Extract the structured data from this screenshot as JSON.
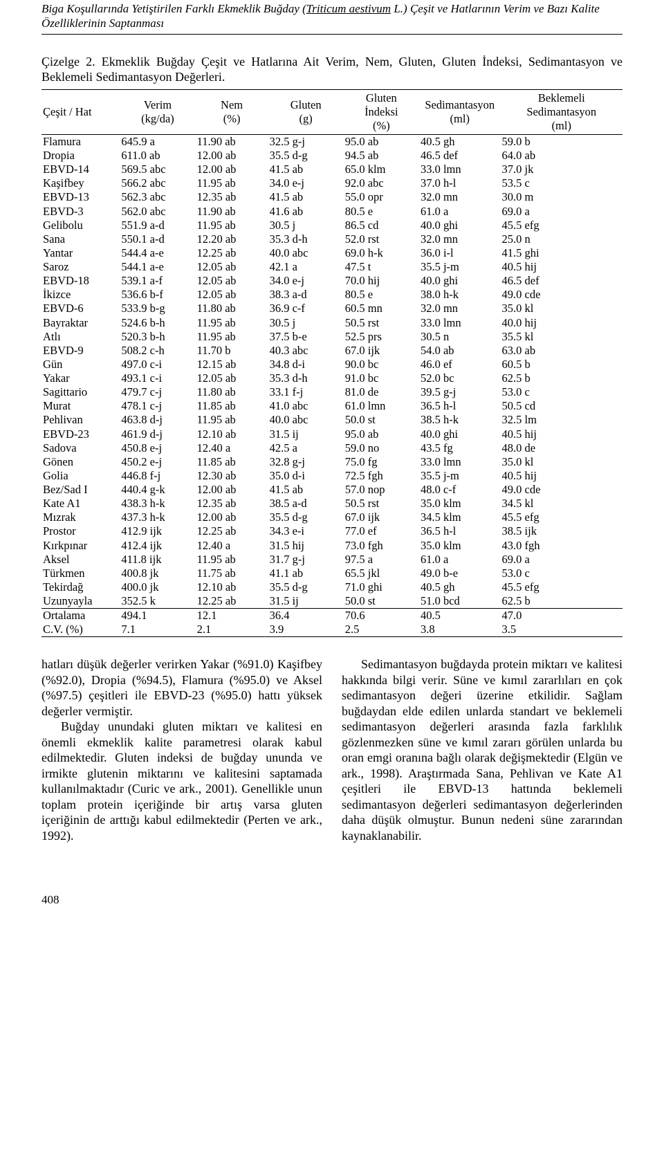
{
  "running_head_pre": "Biga Koşullarında Yetiştirilen Farklı Ekmeklik Buğday (",
  "running_head_ital": "Triticum aestivum",
  "running_head_post": " L.) Çeşit ve Hatlarının Verim ve Bazı Kalite Özelliklerinin Saptanması",
  "caption_no": "Çizelge 2.",
  "caption_text": " Ekmeklik Buğday Çeşit ve Hatlarına Ait Verim, Nem, Gluten, Gluten İndeksi, Sedimantasyon ve Beklemeli Sedimantasyon Değerleri.",
  "headers": {
    "name": "Çeşit / Hat",
    "verim": "Verim\n(kg/da)",
    "nem": "Nem\n(%)",
    "gluten": "Gluten\n(g)",
    "gindex": "Gluten\nİndeksi\n(%)",
    "sed": "Sedimantasyon\n(ml)",
    "bsed": "Beklemeli\nSedimantasyon\n(ml)"
  },
  "rows": [
    [
      "Flamura",
      "645.9 a",
      "11.90 ab",
      "32.5 g-j",
      "95.0 ab",
      "40.5 gh",
      "59.0 b"
    ],
    [
      "Dropia",
      "611.0 ab",
      "12.00 ab",
      "35.5 d-g",
      "94.5 ab",
      "46.5 def",
      "64.0 ab"
    ],
    [
      "EBVD-14",
      "569.5 abc",
      "12.00 ab",
      "41.5 ab",
      "65.0 klm",
      "33.0 lmn",
      "37.0 jk"
    ],
    [
      "Kaşifbey",
      "566.2 abc",
      "11.95 ab",
      "34.0 e-j",
      "92.0 abc",
      "37.0 h-l",
      "53.5 c"
    ],
    [
      "EBVD-13",
      "562.3 abc",
      "12.35 ab",
      "41.5 ab",
      "55.0 opr",
      "32.0 mn",
      "30.0 m"
    ],
    [
      "EBVD-3",
      "562.0 abc",
      "11.90 ab",
      "41.6 ab",
      "80.5 e",
      "61.0 a",
      "69.0 a"
    ],
    [
      "Gelibolu",
      "551.9 a-d",
      "11.95 ab",
      "30.5 j",
      "86.5 cd",
      "40.0 ghi",
      "45.5 efg"
    ],
    [
      "Sana",
      "550.1 a-d",
      "12.20 ab",
      "35.3 d-h",
      "52.0 rst",
      "32.0 mn",
      "25.0 n"
    ],
    [
      "Yantar",
      "544.4 a-e",
      "12.25 ab",
      "40.0 abc",
      "69.0 h-k",
      "36.0 i-l",
      "41.5 ghi"
    ],
    [
      "Saroz",
      "544.1 a-e",
      "12.05 ab",
      "42.1 a",
      "47.5 t",
      "35.5 j-m",
      "40.5 hij"
    ],
    [
      "EBVD-18",
      "539.1 a-f",
      "12.05 ab",
      "34.0 e-j",
      "70.0 hij",
      "40.0 ghi",
      "46.5 def"
    ],
    [
      "İkizce",
      "536.6 b-f",
      "12.05 ab",
      "38.3 a-d",
      "80.5 e",
      "38.0 h-k",
      "49.0 cde"
    ],
    [
      "EBVD-6",
      "533.9 b-g",
      "11.80 ab",
      "36.9 c-f",
      "60.5 mn",
      "32.0 mn",
      "35.0 kl"
    ],
    [
      "Bayraktar",
      "524.6 b-h",
      "11.95 ab",
      "30.5 j",
      "50.5 rst",
      "33.0 lmn",
      "40.0 hij"
    ],
    [
      "Atlı",
      "520.3 b-h",
      "11.95 ab",
      "37.5 b-e",
      "52.5 prs",
      "30.5 n",
      "35.5 kl"
    ],
    [
      "EBVD-9",
      "508.2 c-h",
      "11.70 b",
      "40.3 abc",
      "67.0 ijk",
      "54.0 ab",
      "63.0 ab"
    ],
    [
      "Gün",
      "497.0 c-i",
      "12.15 ab",
      "34.8 d-i",
      "90.0 bc",
      "46.0 ef",
      "60.5 b"
    ],
    [
      "Yakar",
      "493.1 c-i",
      "12.05 ab",
      "35.3 d-h",
      "91.0 bc",
      "52.0 bc",
      "62.5 b"
    ],
    [
      "Sagittario",
      "479.7 c-j",
      "11.80 ab",
      "33.1 f-j",
      "81.0 de",
      "39.5 g-j",
      "53.0 c"
    ],
    [
      "Murat",
      "478.1 c-j",
      "11.85 ab",
      "41.0 abc",
      "61.0 lmn",
      "36.5 h-l",
      "50.5 cd"
    ],
    [
      "Pehlivan",
      "463.8 d-j",
      "11.95 ab",
      "40.0 abc",
      "50.0 st",
      "38.5 h-k",
      "32.5 lm"
    ],
    [
      "EBVD-23",
      "461.9 d-j",
      "12.10 ab",
      "31.5 ij",
      "95.0 ab",
      "40.0 ghi",
      "40.5 hij"
    ],
    [
      "Sadova",
      "450.8 e-j",
      "12.40 a",
      "42.5 a",
      "59.0 no",
      "43.5 fg",
      "48.0 de"
    ],
    [
      "Gönen",
      "450.2 e-j",
      "11.85 ab",
      "32.8 g-j",
      "75.0 fg",
      "33.0 lmn",
      "35.0 kl"
    ],
    [
      "Golia",
      "446.8 f-j",
      "12.30 ab",
      "35.0 d-i",
      "72.5 fgh",
      "35.5 j-m",
      "40.5 hij"
    ],
    [
      "Bez/Sad I",
      "440.4 g-k",
      "12.00 ab",
      "41.5 ab",
      "57.0 nop",
      "48.0 c-f",
      "49.0 cde"
    ],
    [
      "Kate A1",
      "438.3 h-k",
      "12.35 ab",
      "38.5 a-d",
      "50.5 rst",
      "35.0 klm",
      "34.5 kl"
    ],
    [
      "Mızrak",
      "437.3 h-k",
      "12.00 ab",
      "35.5 d-g",
      "67.0 ijk",
      "34.5 klm",
      "45.5 efg"
    ],
    [
      "Prostor",
      "412.9 ijk",
      "12.25 ab",
      "34.3 e-i",
      "77.0 ef",
      "36.5 h-l",
      "38.5 ijk"
    ],
    [
      "Kırkpınar",
      "412.4 ijk",
      "12.40 a",
      "31.5 hij",
      "73.0 fgh",
      "35.0 klm",
      "43.0 fgh"
    ],
    [
      "Aksel",
      "411.8 ijk",
      "11.95 ab",
      "31.7 g-j",
      "97.5 a",
      "61.0 a",
      "69.0 a"
    ],
    [
      "Türkmen",
      "400.8 jk",
      "11.75 ab",
      "41.1 ab",
      "65.5 jkl",
      "49.0 b-e",
      "53.0 c"
    ],
    [
      "Tekirdağ",
      "400.0 jk",
      "12.10 ab",
      "35.5 d-g",
      "71.0 ghi",
      "40.5 gh",
      "45.5 efg"
    ],
    [
      "Uzunyayla",
      "352.5 k",
      "12.25 ab",
      "31.5 ij",
      "50.0 st",
      "51.0 bcd",
      "62.5 b"
    ]
  ],
  "summary": [
    [
      "Ortalama",
      "494.1",
      "12.1",
      "36.4",
      "70.6",
      "40.5",
      "47.0"
    ],
    [
      "C.V. (%)",
      "    7.1",
      "  2.1",
      "  3.9",
      "  2.5",
      "  3.8",
      "  3.5"
    ]
  ],
  "left_paragraphs": [
    "hatları düşük değerler verirken Yakar (%91.0) Kaşifbey (%92.0), Dropia (%94.5), Flamura (%95.0) ve Aksel (%97.5) çeşitleri ile EBVD-23 (%95.0) hattı yüksek değerler vermiştir.",
    "Buğday unundaki gluten miktarı ve kalitesi en önemli ekmeklik kalite parametresi olarak kabul edilmektedir. Gluten indeksi de buğday ununda ve irmikte glutenin miktarını ve kalitesini saptamada kullanılmaktadır (Curic ve ark., 2001). Genellikle unun toplam protein içeriğinde bir artış varsa gluten içeriğinin de arttığı kabul edilmektedir (Perten ve ark., 1992)."
  ],
  "right_paragraphs": [
    "Sedimantasyon buğdayda protein miktarı ve kalitesi hakkında bilgi verir. Süne ve kımıl zararlıları en çok sedimantasyon değeri üzerine etkilidir. Sağlam buğdaydan elde edilen unlarda standart ve beklemeli sedimantasyon değerleri arasında fazla farklılık gözlenmezken süne ve kımıl zararı görülen unlarda bu oran emgi oranına bağlı olarak değişmektedir (Elgün ve ark., 1998). Araştırmada Sana, Pehlivan ve Kate A1 çeşitleri ile EBVD-13 hattında beklemeli sedimantasyon değerleri sedimantasyon değerlerinden daha düşük olmuştur. Bunun nedeni süne zararından kaynaklanabilir."
  ],
  "page_number": "408"
}
